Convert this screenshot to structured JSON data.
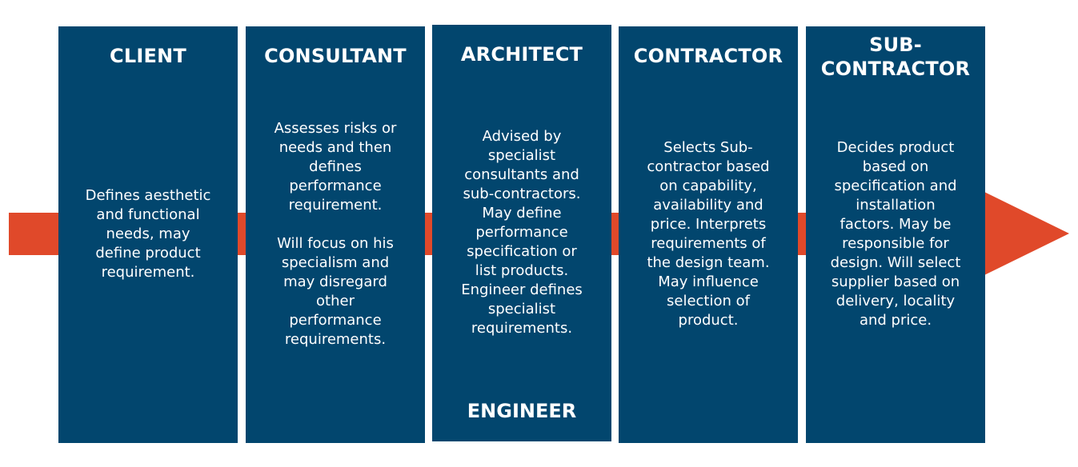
{
  "colors": {
    "panel": "#02466e",
    "arrow": "#e0492a",
    "text": "#ffffff"
  },
  "columns": [
    {
      "title": "CLIENT",
      "text": "Defines aesthetic\nand functional\nneeds, may\ndefine product\nrequirement."
    },
    {
      "title": "CONSULTANT",
      "text": "Assesses risks or\nneeds and then\ndefines\nperformance\nrequirement.\n\nWill focus on his\nspecialism and\nmay disregard\nother\nperformance\nrequirements."
    },
    {
      "title": "ARCHITECT",
      "text": "Advised by\nspecialist\nconsultants and\nsub-contractors.\nMay define\nperformance\nspecification or\nlist products.\nEngineer defines\nspecialist\nrequirements.",
      "footer": "ENGINEER"
    },
    {
      "title": "CONTRACTOR",
      "text": "Selects Sub-\ncontractor based\non capability,\navailability and\nprice. Interprets\nrequirements of\nthe design team.\nMay influence\nselection of\nproduct."
    },
    {
      "title": "SUB-\nCONTRACTOR",
      "text": "Decides product\nbased on\nspecification and\ninstallation\nfactors. May be\nresponsible for\ndesign. Will select\nsupplier based on\ndelivery, locality\nand price."
    }
  ]
}
